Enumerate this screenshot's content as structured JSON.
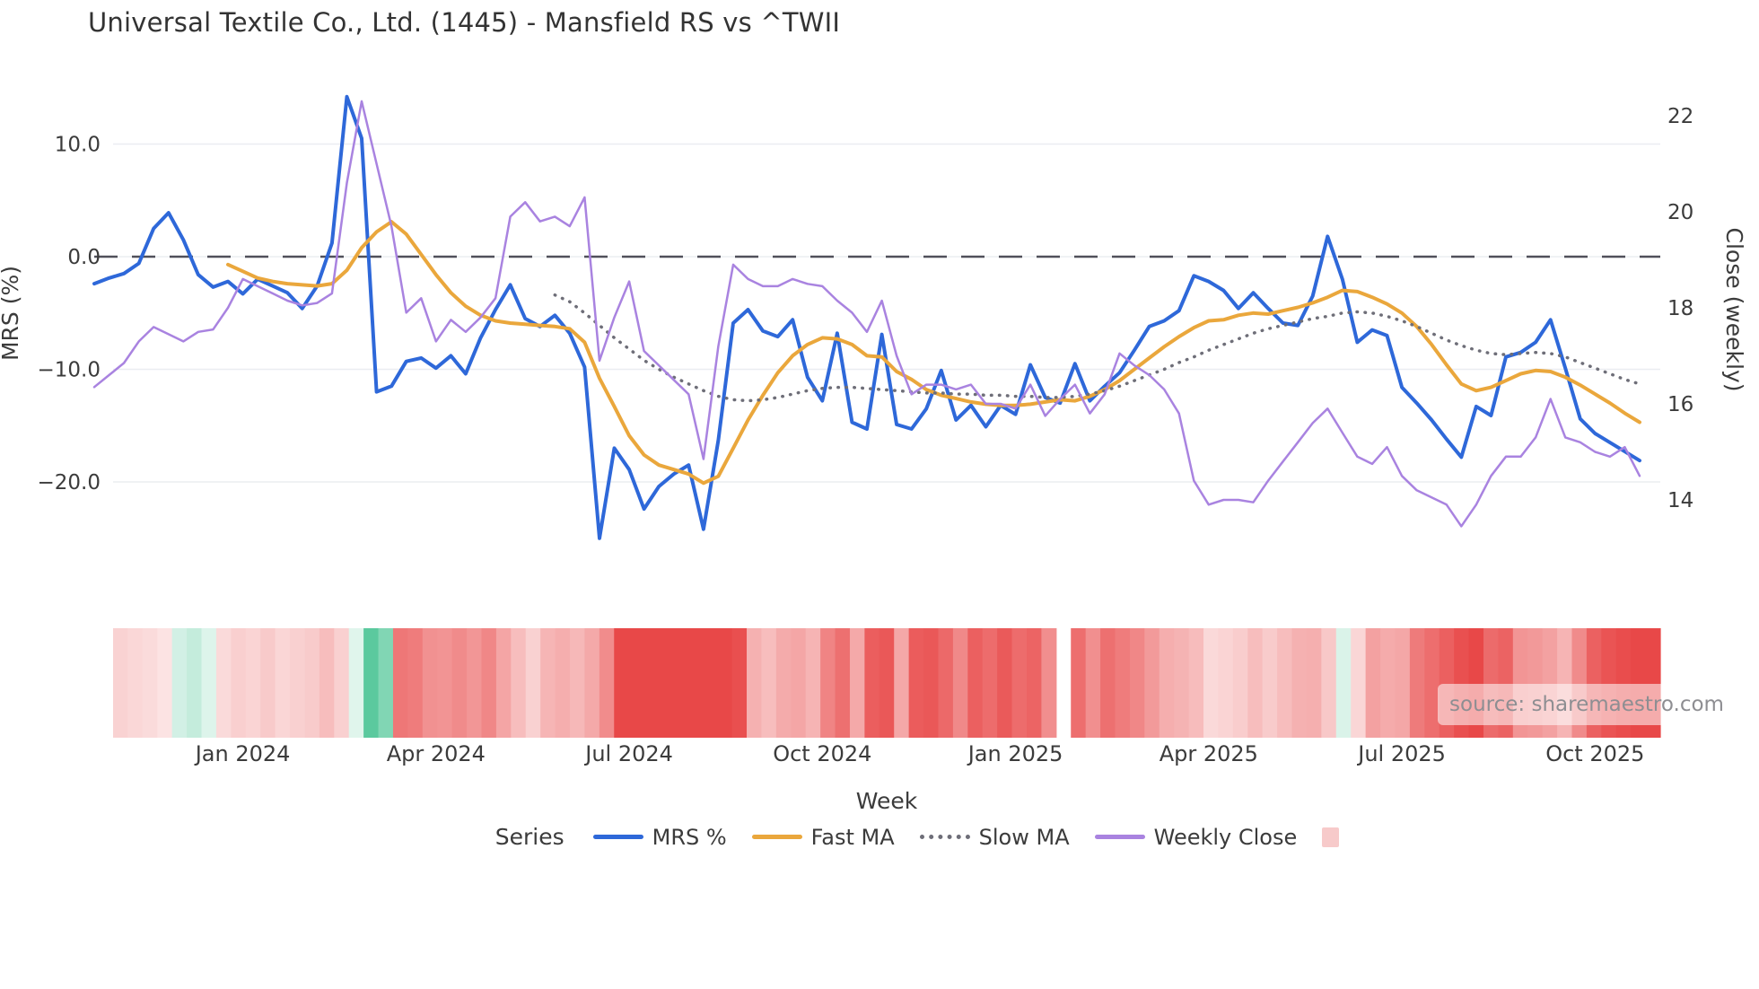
{
  "title": "Universal Textile Co., Ltd. (1445) - Mansfield RS vs ^TWII",
  "watermark": "source: sharemaestro.com",
  "left_axis": {
    "label": "MRS (%)",
    "ticks": [
      {
        "value": 10,
        "label": "10.0"
      },
      {
        "value": 0,
        "label": "0.0"
      },
      {
        "value": -10,
        "label": "−10.0"
      },
      {
        "value": -20,
        "label": "−20.0"
      }
    ]
  },
  "right_axis": {
    "label": "Close (weekly)",
    "ticks": [
      {
        "value": 22,
        "label": "22"
      },
      {
        "value": 20,
        "label": "20"
      },
      {
        "value": 18,
        "label": "18"
      },
      {
        "value": 16,
        "label": "16"
      },
      {
        "value": 14,
        "label": "14"
      }
    ]
  },
  "x_axis": {
    "label": "Week",
    "ticks": [
      {
        "week": 10,
        "label": "Jan 2024"
      },
      {
        "week": 23,
        "label": "Apr 2024"
      },
      {
        "week": 36,
        "label": "Jul 2024"
      },
      {
        "week": 49,
        "label": "Oct 2024"
      },
      {
        "week": 62,
        "label": "Jan 2025"
      },
      {
        "week": 75,
        "label": "Apr 2025"
      },
      {
        "week": 88,
        "label": "Jul 2025"
      },
      {
        "week": 101,
        "label": "Oct 2025"
      }
    ]
  },
  "legend": {
    "title": "Series",
    "items": [
      {
        "label": "MRS %",
        "color": "#2e68d9",
        "style": "solid"
      },
      {
        "label": "Fast MA",
        "color": "#eaa73c",
        "style": "solid"
      },
      {
        "label": "Slow MA",
        "color": "#6e6e78",
        "style": "dotted"
      },
      {
        "label": "Weekly Close",
        "color": "#a983e0",
        "style": "solid"
      },
      {
        "label": "",
        "color": "#f7caca",
        "style": "square"
      }
    ]
  },
  "colors": {
    "grid": "#ebedf1",
    "zero_line": "#50505a",
    "text": "#3b3b3b",
    "mrs_line": "#2e68d9",
    "fast_ma_line": "#eaa73c",
    "slow_ma_line": "#6e6e78",
    "weekly_close_line": "#a983e0",
    "heatmap_negative": "#e84848",
    "heatmap_positive": "#3fc08d"
  },
  "chart_data": {
    "type": "line",
    "title": "Universal Textile Co., Ltd. (1445) - Mansfield RS vs ^TWII",
    "xlabel": "Week",
    "x_range": [
      "late Oct 2023",
      "Nov 2025"
    ],
    "weeks": 105,
    "left_ylabel": "MRS (%)",
    "left_yticks": [
      10.0,
      0.0,
      -10.0,
      -20.0
    ],
    "right_ylabel": "Close (weekly)",
    "right_yticks": [
      22,
      20,
      18,
      16,
      14
    ],
    "grid": true,
    "zero_dashed_line": 0,
    "legend_position": "bottom",
    "series": [
      {
        "name": "MRS %",
        "axis": "left",
        "color": "#2e68d9",
        "style": "solid",
        "width": 4,
        "values": [
          -2.4,
          -1.9,
          -1.5,
          -0.6,
          2.5,
          3.9,
          1.5,
          -1.6,
          -2.7,
          -2.2,
          -3.3,
          -2.0,
          -2.6,
          -3.2,
          -4.6,
          -2.6,
          1.2,
          14.2,
          10.5,
          -12.0,
          -11.5,
          -9.3,
          -9.0,
          -9.9,
          -8.8,
          -10.4,
          -7.2,
          -4.7,
          -2.5,
          -5.5,
          -6.2,
          -5.2,
          -6.8,
          -9.8,
          -25.0,
          -17.0,
          -18.9,
          -22.4,
          -20.4,
          -19.3,
          -18.5,
          -24.2,
          -16.3,
          -5.9,
          -4.7,
          -6.6,
          -7.1,
          -5.6,
          -10.7,
          -12.8,
          -6.8,
          -14.7,
          -15.3,
          -6.9,
          -14.9,
          -15.3,
          -13.5,
          -10.1,
          -14.5,
          -13.2,
          -15.1,
          -13.2,
          -14.0,
          -9.6,
          -12.5,
          -13.0,
          -9.5,
          -12.8,
          -11.5,
          -10.3,
          -8.3,
          -6.2,
          -5.7,
          -4.8,
          -1.7,
          -2.2,
          -3.0,
          -4.6,
          -3.2,
          -4.6,
          -5.9,
          -6.1,
          -3.5,
          1.8,
          -2.0,
          -7.6,
          -6.5,
          -7.0,
          -11.6,
          -13.0,
          -14.5,
          -16.2,
          -17.8,
          -13.3,
          -14.1,
          -8.9,
          -8.5,
          -7.6,
          -5.6,
          -9.9,
          -14.4,
          -15.7,
          -16.5,
          -17.3,
          -18.1
        ]
      },
      {
        "name": "Fast MA",
        "axis": "left",
        "color": "#eaa73c",
        "style": "solid",
        "width": 4,
        "values": [
          null,
          null,
          null,
          null,
          null,
          null,
          null,
          null,
          null,
          -0.7,
          -1.3,
          -1.9,
          -2.2,
          -2.4,
          -2.5,
          -2.6,
          -2.4,
          -1.2,
          0.8,
          2.2,
          3.1,
          2.0,
          0.2,
          -1.6,
          -3.2,
          -4.4,
          -5.2,
          -5.7,
          -5.9,
          -6.0,
          -6.1,
          -6.2,
          -6.4,
          -7.6,
          -10.8,
          -13.3,
          -15.9,
          -17.6,
          -18.5,
          -18.9,
          -19.3,
          -20.1,
          -19.5,
          -17.0,
          -14.5,
          -12.3,
          -10.3,
          -8.8,
          -7.8,
          -7.2,
          -7.3,
          -7.8,
          -8.8,
          -8.9,
          -10.2,
          -10.9,
          -11.8,
          -12.3,
          -12.6,
          -12.9,
          -13.1,
          -13.2,
          -13.2,
          -13.1,
          -12.9,
          -12.7,
          -12.8,
          -12.4,
          -11.8,
          -11.0,
          -10.0,
          -9.0,
          -8.0,
          -7.1,
          -6.3,
          -5.7,
          -5.6,
          -5.2,
          -5.0,
          -5.1,
          -4.8,
          -4.5,
          -4.1,
          -3.6,
          -3.0,
          -3.1,
          -3.6,
          -4.2,
          -5.0,
          -6.2,
          -7.8,
          -9.6,
          -11.3,
          -11.9,
          -11.6,
          -11.0,
          -10.4,
          -10.1,
          -10.2,
          -10.7,
          -11.4,
          -12.2,
          -13.0,
          -13.9,
          -14.7
        ]
      },
      {
        "name": "Slow MA",
        "axis": "left",
        "color": "#6e6e78",
        "style": "dotted",
        "width": 3.5,
        "values": [
          null,
          null,
          null,
          null,
          null,
          null,
          null,
          null,
          null,
          null,
          null,
          null,
          null,
          null,
          null,
          null,
          null,
          null,
          null,
          null,
          null,
          null,
          null,
          null,
          null,
          null,
          null,
          null,
          null,
          null,
          null,
          -3.4,
          -4.0,
          -5.0,
          -6.1,
          -7.2,
          -8.2,
          -9.2,
          -10.0,
          -10.7,
          -11.3,
          -11.9,
          -12.4,
          -12.7,
          -12.8,
          -12.7,
          -12.5,
          -12.2,
          -11.9,
          -11.7,
          -11.6,
          -11.6,
          -11.7,
          -11.8,
          -11.9,
          -12.0,
          -12.1,
          -12.1,
          -12.2,
          -12.2,
          -12.3,
          -12.3,
          -12.4,
          -12.4,
          -12.5,
          -12.5,
          -12.4,
          -12.2,
          -11.9,
          -11.5,
          -11.0,
          -10.5,
          -10.0,
          -9.4,
          -8.9,
          -8.3,
          -7.8,
          -7.3,
          -6.8,
          -6.4,
          -6.1,
          -5.8,
          -5.5,
          -5.3,
          -5.0,
          -4.9,
          -5.0,
          -5.3,
          -5.7,
          -6.2,
          -6.8,
          -7.4,
          -7.9,
          -8.3,
          -8.6,
          -8.7,
          -8.6,
          -8.5,
          -8.6,
          -8.9,
          -9.4,
          -9.9,
          -10.4,
          -10.9,
          -11.3
        ]
      },
      {
        "name": "Weekly Close",
        "axis": "right",
        "color": "#a983e0",
        "style": "solid",
        "width": 2.5,
        "values": [
          16.35,
          16.6,
          16.85,
          17.3,
          17.6,
          17.45,
          17.3,
          17.5,
          17.55,
          18.0,
          18.6,
          18.45,
          18.3,
          18.15,
          18.05,
          18.1,
          18.3,
          20.6,
          22.3,
          21.0,
          19.7,
          17.9,
          18.2,
          17.3,
          17.75,
          17.5,
          17.8,
          18.2,
          19.9,
          20.2,
          19.8,
          19.9,
          19.7,
          20.3,
          16.9,
          17.8,
          18.55,
          17.1,
          16.8,
          16.5,
          16.2,
          14.85,
          17.2,
          18.9,
          18.6,
          18.45,
          18.45,
          18.6,
          18.5,
          18.45,
          18.15,
          17.9,
          17.5,
          18.15,
          17.0,
          16.2,
          16.4,
          16.4,
          16.3,
          16.4,
          16.0,
          16.0,
          15.9,
          16.4,
          15.75,
          16.1,
          16.4,
          15.8,
          16.2,
          17.05,
          16.8,
          16.6,
          16.3,
          15.8,
          14.4,
          13.9,
          14.0,
          14.0,
          13.95,
          14.4,
          14.8,
          15.2,
          15.6,
          15.9,
          15.4,
          14.9,
          14.75,
          15.1,
          14.5,
          14.2,
          14.05,
          13.9,
          13.45,
          13.9,
          14.5,
          14.9,
          14.9,
          15.3,
          16.1,
          15.3,
          15.2,
          15.0,
          14.9,
          15.1,
          14.5
        ]
      }
    ],
    "heatmap": {
      "description": "weekly strip colored by MRS % value: red = negative, green = positive, intensity by magnitude",
      "source_series": "MRS %",
      "gap_indices": [
        64
      ],
      "negative_color": "#e84848",
      "positive_color": "#3fc08d",
      "max_abs": 17
    }
  }
}
